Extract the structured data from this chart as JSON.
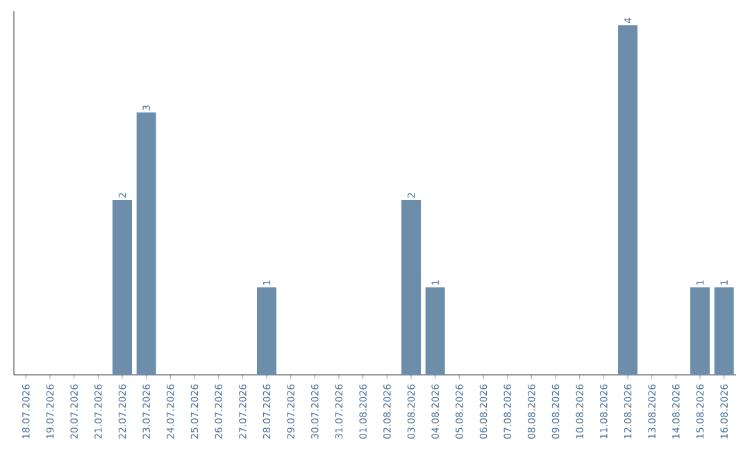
{
  "chart_data": {
    "type": "bar",
    "categories": [
      "18.07.2026",
      "19.07.2026",
      "20.07.2026",
      "21.07.2026",
      "22.07.2026",
      "23.07.2026",
      "24.07.2026",
      "25.07.2026",
      "26.07.2026",
      "27.07.2026",
      "28.07.2026",
      "29.07.2026",
      "30.07.2026",
      "31.07.2026",
      "01.08.2026",
      "02.08.2026",
      "03.08.2026",
      "04.08.2026",
      "05.08.2026",
      "06.08.2026",
      "07.08.2026",
      "08.08.2026",
      "09.08.2026",
      "10.08.2026",
      "11.08.2026",
      "12.08.2026",
      "13.08.2026",
      "14.08.2026",
      "15.08.2026",
      "16.08.2026"
    ],
    "values": [
      0,
      0,
      0,
      0,
      2,
      3,
      0,
      0,
      0,
      0,
      1,
      0,
      0,
      0,
      0,
      0,
      2,
      1,
      0,
      0,
      0,
      0,
      0,
      0,
      0,
      4,
      0,
      0,
      1,
      1
    ],
    "value_labels": [
      null,
      null,
      null,
      null,
      "2",
      "3",
      null,
      null,
      null,
      null,
      "1",
      null,
      null,
      null,
      null,
      null,
      "2",
      "1",
      null,
      null,
      null,
      null,
      null,
      null,
      null,
      "4",
      null,
      null,
      "1",
      "1"
    ],
    "color": "#6d8eab",
    "tick_labels": "x"
  }
}
